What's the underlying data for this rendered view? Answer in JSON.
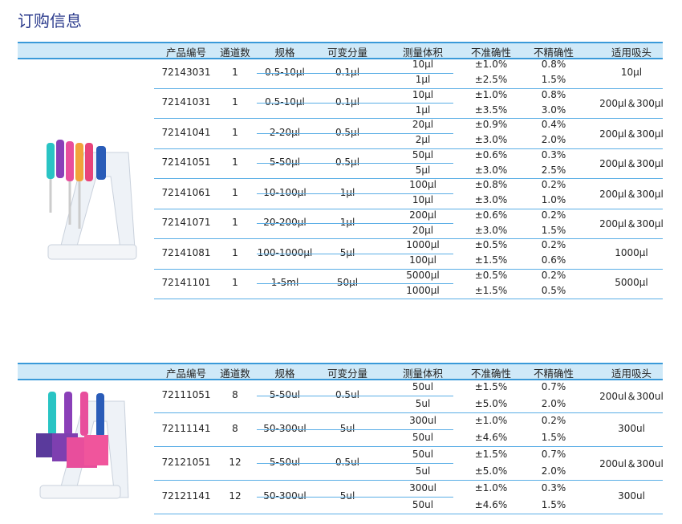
{
  "title": "订购信息",
  "headers": [
    "产品编号",
    "通道数",
    "规格",
    "可变分量",
    "测量体积",
    "不准确性",
    "不精确性",
    "适用吸头"
  ],
  "colors": {
    "accent": "#3a9ad9",
    "header_bg": "#cfe9f8",
    "title": "#2a3a8c"
  },
  "tables": [
    {
      "name": "single-channel",
      "rows": [
        {
          "code": "72143031",
          "channels": "1",
          "spec": "0.5-10μl",
          "increment": "0.1μl",
          "sub": [
            [
              "10μl",
              "±1.0%",
              "0.8%"
            ],
            [
              "1μl",
              "±2.5%",
              "1.5%"
            ]
          ],
          "tips": "10μl"
        },
        {
          "code": "72141031",
          "channels": "1",
          "spec": "0.5-10μl",
          "increment": "0.1μl",
          "sub": [
            [
              "10μl",
              "±1.0%",
              "0.8%"
            ],
            [
              "1μl",
              "±3.5%",
              "3.0%"
            ]
          ],
          "tips": "200μl＆300μl"
        },
        {
          "code": "72141041",
          "channels": "1",
          "spec": "2-20μl",
          "increment": "0.5μl",
          "sub": [
            [
              "20μl",
              "±0.9%",
              "0.4%"
            ],
            [
              "2μl",
              "±3.0%",
              "2.0%"
            ]
          ],
          "tips": "200μl＆300μl"
        },
        {
          "code": "72141051",
          "channels": "1",
          "spec": "5-50μl",
          "increment": "0.5μl",
          "sub": [
            [
              "50μl",
              "±0.6%",
              "0.3%"
            ],
            [
              "5μl",
              "±3.0%",
              "2.5%"
            ]
          ],
          "tips": "200μl＆300μl"
        },
        {
          "code": "72141061",
          "channels": "1",
          "spec": "10-100μl",
          "increment": "1μl",
          "sub": [
            [
              "100μl",
              "±0.8%",
              "0.2%"
            ],
            [
              "10μl",
              "±3.0%",
              "1.0%"
            ]
          ],
          "tips": "200μl＆300μl"
        },
        {
          "code": "72141071",
          "channels": "1",
          "spec": "20-200μl",
          "increment": "1μl",
          "sub": [
            [
              "200μl",
              "±0.6%",
              "0.2%"
            ],
            [
              "20μl",
              "±3.0%",
              "1.5%"
            ]
          ],
          "tips": "200μl＆300μl"
        },
        {
          "code": "72141081",
          "channels": "1",
          "spec": "100-1000μl",
          "increment": "5μl",
          "sub": [
            [
              "1000μl",
              "±0.5%",
              "0.2%"
            ],
            [
              "100μl",
              "±1.5%",
              "0.6%"
            ]
          ],
          "tips": "1000μl"
        },
        {
          "code": "72141101",
          "channels": "1",
          "spec": "1-5ml",
          "increment": "50μl",
          "sub": [
            [
              "5000μl",
              "±0.5%",
              "0.2%"
            ],
            [
              "1000μl",
              "±1.5%",
              "0.5%"
            ]
          ],
          "tips": "5000μl"
        }
      ]
    },
    {
      "name": "multi-channel",
      "rows": [
        {
          "code": "72111051",
          "channels": "8",
          "spec": "5-50ul",
          "increment": "0.5ul",
          "sub": [
            [
              "50ul",
              "±1.5%",
              "0.7%"
            ],
            [
              "5ul",
              "±5.0%",
              "2.0%"
            ]
          ],
          "tips": "200ul＆300ul"
        },
        {
          "code": "72111141",
          "channels": "8",
          "spec": "50-300ul",
          "increment": "5ul",
          "sub": [
            [
              "300ul",
              "±1.0%",
              "0.2%"
            ],
            [
              "50ul",
              "±4.6%",
              "1.5%"
            ]
          ],
          "tips": "300ul"
        },
        {
          "code": "72121051",
          "channels": "12",
          "spec": "5-50ul",
          "increment": "0.5ul",
          "sub": [
            [
              "50ul",
              "±1.5%",
              "0.7%"
            ],
            [
              "5ul",
              "±5.0%",
              "2.0%"
            ]
          ],
          "tips": "200ul＆300ul"
        },
        {
          "code": "72121141",
          "channels": "12",
          "spec": "50-300ul",
          "increment": "5ul",
          "sub": [
            [
              "300ul",
              "±1.0%",
              "0.3%"
            ],
            [
              "50ul",
              "±4.6%",
              "1.5%"
            ]
          ],
          "tips": "300ul"
        }
      ]
    }
  ]
}
